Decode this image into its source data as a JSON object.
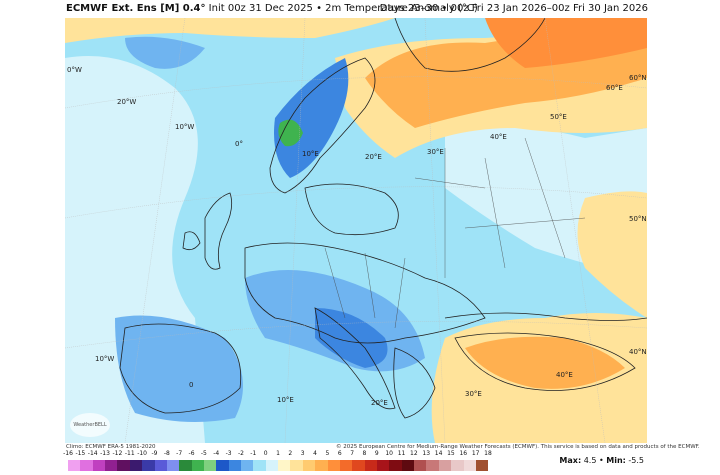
{
  "header": {
    "product": "ECMWF Ext. Ens [M] 0.4°",
    "init": "Init 00z 31 Dec 2025",
    "variable": "2m Temperature Anomaly (°C)",
    "valid": "Days 23–30 • 00z Fri 23 Jan 2026–00z Fri 30 Jan 2026"
  },
  "grid_labels": [
    {
      "text": "0°W"
    },
    {
      "text": "20°W"
    },
    {
      "text": "10°W"
    },
    {
      "text": "0°"
    },
    {
      "text": "10°E"
    },
    {
      "text": "20°E"
    },
    {
      "text": "30°E"
    },
    {
      "text": "40°E"
    },
    {
      "text": "50°E"
    },
    {
      "text": "60°E"
    },
    {
      "text": "60°N"
    },
    {
      "text": "50°N"
    },
    {
      "text": "40°N"
    },
    {
      "text": "10°W"
    },
    {
      "text": "0"
    },
    {
      "text": "10°E"
    },
    {
      "text": "20°E"
    },
    {
      "text": "30°E"
    },
    {
      "text": "40°E"
    }
  ],
  "footer": {
    "climo": "Climo: ECMWF ERA-5 1981-2020",
    "copyright": "© 2025 European Centre for Medium-Range Weather Forecasts (ECMWF). This service is based on data and products of the ECMWF.",
    "logo": "WeatherBELL"
  },
  "colorbar": {
    "labels": [
      "-16",
      "-15",
      "-14",
      "-13",
      "-12",
      "-11",
      "-10",
      "-9",
      "-8",
      "-7",
      "-6",
      "-5",
      "-4",
      "-3",
      "-2",
      "-1",
      "0",
      "1",
      "2",
      "3",
      "4",
      "5",
      "6",
      "7",
      "8",
      "9",
      "10",
      "11",
      "12",
      "13",
      "14",
      "15",
      "16",
      "17",
      "18"
    ],
    "colors": [
      "#f0a0f0",
      "#e070e0",
      "#c040c0",
      "#902090",
      "#601060",
      "#3b1a6e",
      "#3a3aa8",
      "#5a5ad8",
      "#7f8ff0",
      "#2a8a3a",
      "#3fb34f",
      "#7fd07f",
      "#1d58c8",
      "#3c86e0",
      "#6fb4f0",
      "#9fe3f7",
      "#d6f3fb",
      "#fff6c8",
      "#ffe39a",
      "#ffcb70",
      "#ffb050",
      "#ff8f3a",
      "#f36b2a",
      "#e0481f",
      "#c82a1a",
      "#a8141a",
      "#7f0c12",
      "#5e0a10",
      "#b05050",
      "#c87878",
      "#d8a0a0",
      "#e8c8c8",
      "#f0dada",
      "#a05030"
    ]
  },
  "maxmin": {
    "max_label": "Max:",
    "max": "4.5",
    "min_label": "Min:",
    "min": "-5.5"
  },
  "palette": {
    "near_zero_cold": "#d6f3fb",
    "light_blue": "#9fe3f7",
    "mid_blue": "#6fb4f0",
    "blue": "#3c86e0",
    "yellow": "#ffe39a",
    "orange": "#ffb050",
    "dark_orange": "#ff8f3a",
    "green": "#3fb34f"
  }
}
